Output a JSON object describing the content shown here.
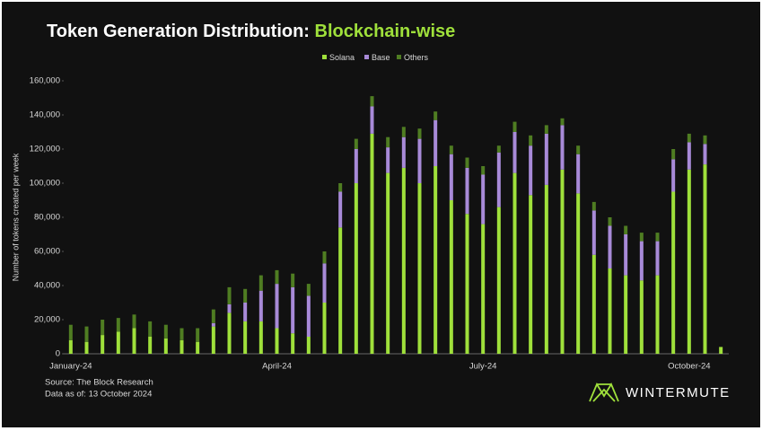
{
  "chart_data": {
    "type": "stacked_bar",
    "title": "Token Generation Distribution:",
    "title_highlight": "Blockchain-wise",
    "y_label": "Number of tokens created per week",
    "source": "Source: The Block Research",
    "data_note": "Data as of: 13 October 2024",
    "brand": "WINTERMUTE",
    "categories": [
      "January-24",
      null,
      null,
      null,
      null,
      null,
      null,
      null,
      null,
      null,
      null,
      null,
      null,
      "April-24",
      null,
      null,
      null,
      null,
      null,
      null,
      null,
      null,
      null,
      null,
      null,
      null,
      "July-24",
      null,
      null,
      null,
      null,
      null,
      null,
      null,
      null,
      null,
      null,
      null,
      null,
      "October-24",
      null,
      null
    ],
    "series": [
      {
        "name": "Solana",
        "color": "#9fe03b",
        "values": [
          8000,
          7000,
          11000,
          13000,
          15000,
          10000,
          9000,
          8000,
          7000,
          16000,
          24000,
          19000,
          19000,
          15000,
          12000,
          10000,
          30000,
          74000,
          100000,
          129000,
          106000,
          109000,
          100000,
          110000,
          90000,
          82000,
          76000,
          86000,
          106000,
          93000,
          99000,
          108000,
          94000,
          58000,
          50000,
          46000,
          43000,
          46000,
          95000,
          108000,
          111000,
          4000
        ]
      },
      {
        "name": "Base",
        "color": "#a88ad8",
        "values": [
          0,
          0,
          0,
          0,
          0,
          0,
          0,
          0,
          0,
          2000,
          5000,
          11000,
          18000,
          26000,
          27000,
          24000,
          23000,
          21000,
          20000,
          16000,
          15000,
          18000,
          26000,
          27000,
          27000,
          27000,
          29000,
          32000,
          24000,
          29000,
          30000,
          26000,
          23000,
          26000,
          25000,
          24000,
          23000,
          20000,
          19000,
          16000,
          12000,
          0
        ]
      },
      {
        "name": "Others",
        "color": "#4f7d22",
        "values": [
          9000,
          9000,
          9000,
          8000,
          8000,
          9000,
          8000,
          7000,
          8000,
          8000,
          10000,
          8000,
          9000,
          8000,
          8000,
          7000,
          7000,
          5000,
          6000,
          6000,
          6000,
          6000,
          6000,
          5000,
          5000,
          6000,
          5000,
          4000,
          6000,
          6000,
          5000,
          4000,
          5000,
          5000,
          5000,
          5000,
          5000,
          5000,
          6000,
          5000,
          5000,
          0
        ]
      }
    ],
    "ylim": [
      0,
      160000
    ],
    "yticks": [
      0,
      {
        "value": 20000,
        "label": "20,000"
      },
      {
        "value": 40000,
        "label": "40,000"
      },
      {
        "value": 60000,
        "label": "60,000"
      },
      {
        "value": 80000,
        "label": "80,000"
      },
      {
        "value": 100000,
        "label": "100,000"
      },
      {
        "value": 120000,
        "label": "120,000"
      },
      {
        "value": 140000,
        "label": "140,000"
      },
      {
        "value": 160000,
        "label": "160,000"
      }
    ],
    "legend": "top"
  }
}
